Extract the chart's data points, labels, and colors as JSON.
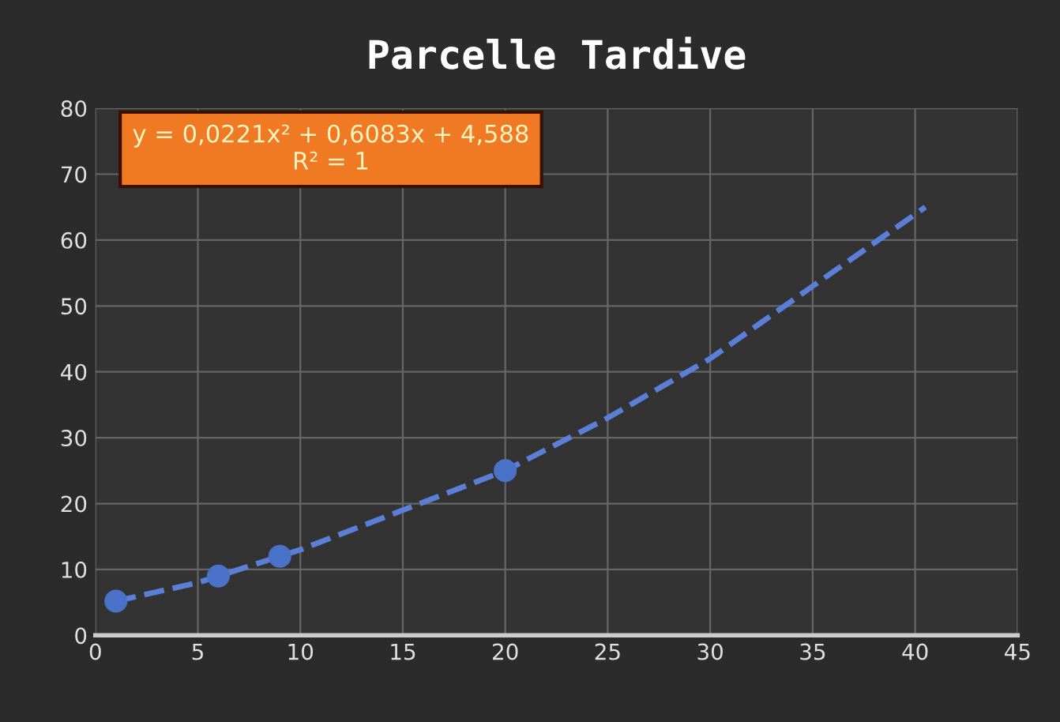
{
  "chart_data": {
    "type": "scatter",
    "title": "Parcelle Tardive",
    "xlim": [
      0,
      45
    ],
    "xticks": [
      0,
      5,
      10,
      15,
      20,
      25,
      30,
      35,
      40,
      45
    ],
    "ylim": [
      0,
      80
    ],
    "yticks": [
      0,
      10,
      20,
      30,
      40,
      50,
      60,
      70,
      80
    ],
    "grid": true,
    "legend": false,
    "series": [
      {
        "color": "#4a72c8",
        "marker": "circle",
        "x": [
          1,
          6,
          9,
          20
        ],
        "values": [
          5.2,
          9,
          12,
          25
        ]
      },
      {
        "type": "line",
        "color": "#5b7fd6",
        "marker": "none",
        "line_style": "dashed",
        "x": [
          1,
          5,
          10,
          15,
          20,
          25,
          30,
          35,
          40.5
        ],
        "values": [
          5.2,
          8,
          13,
          19,
          25,
          33,
          42,
          53,
          65
        ]
      }
    ],
    "annotations": [
      "y = 0,0221x² + 0,6083x + 4,588\nR² = 1"
    ]
  }
}
